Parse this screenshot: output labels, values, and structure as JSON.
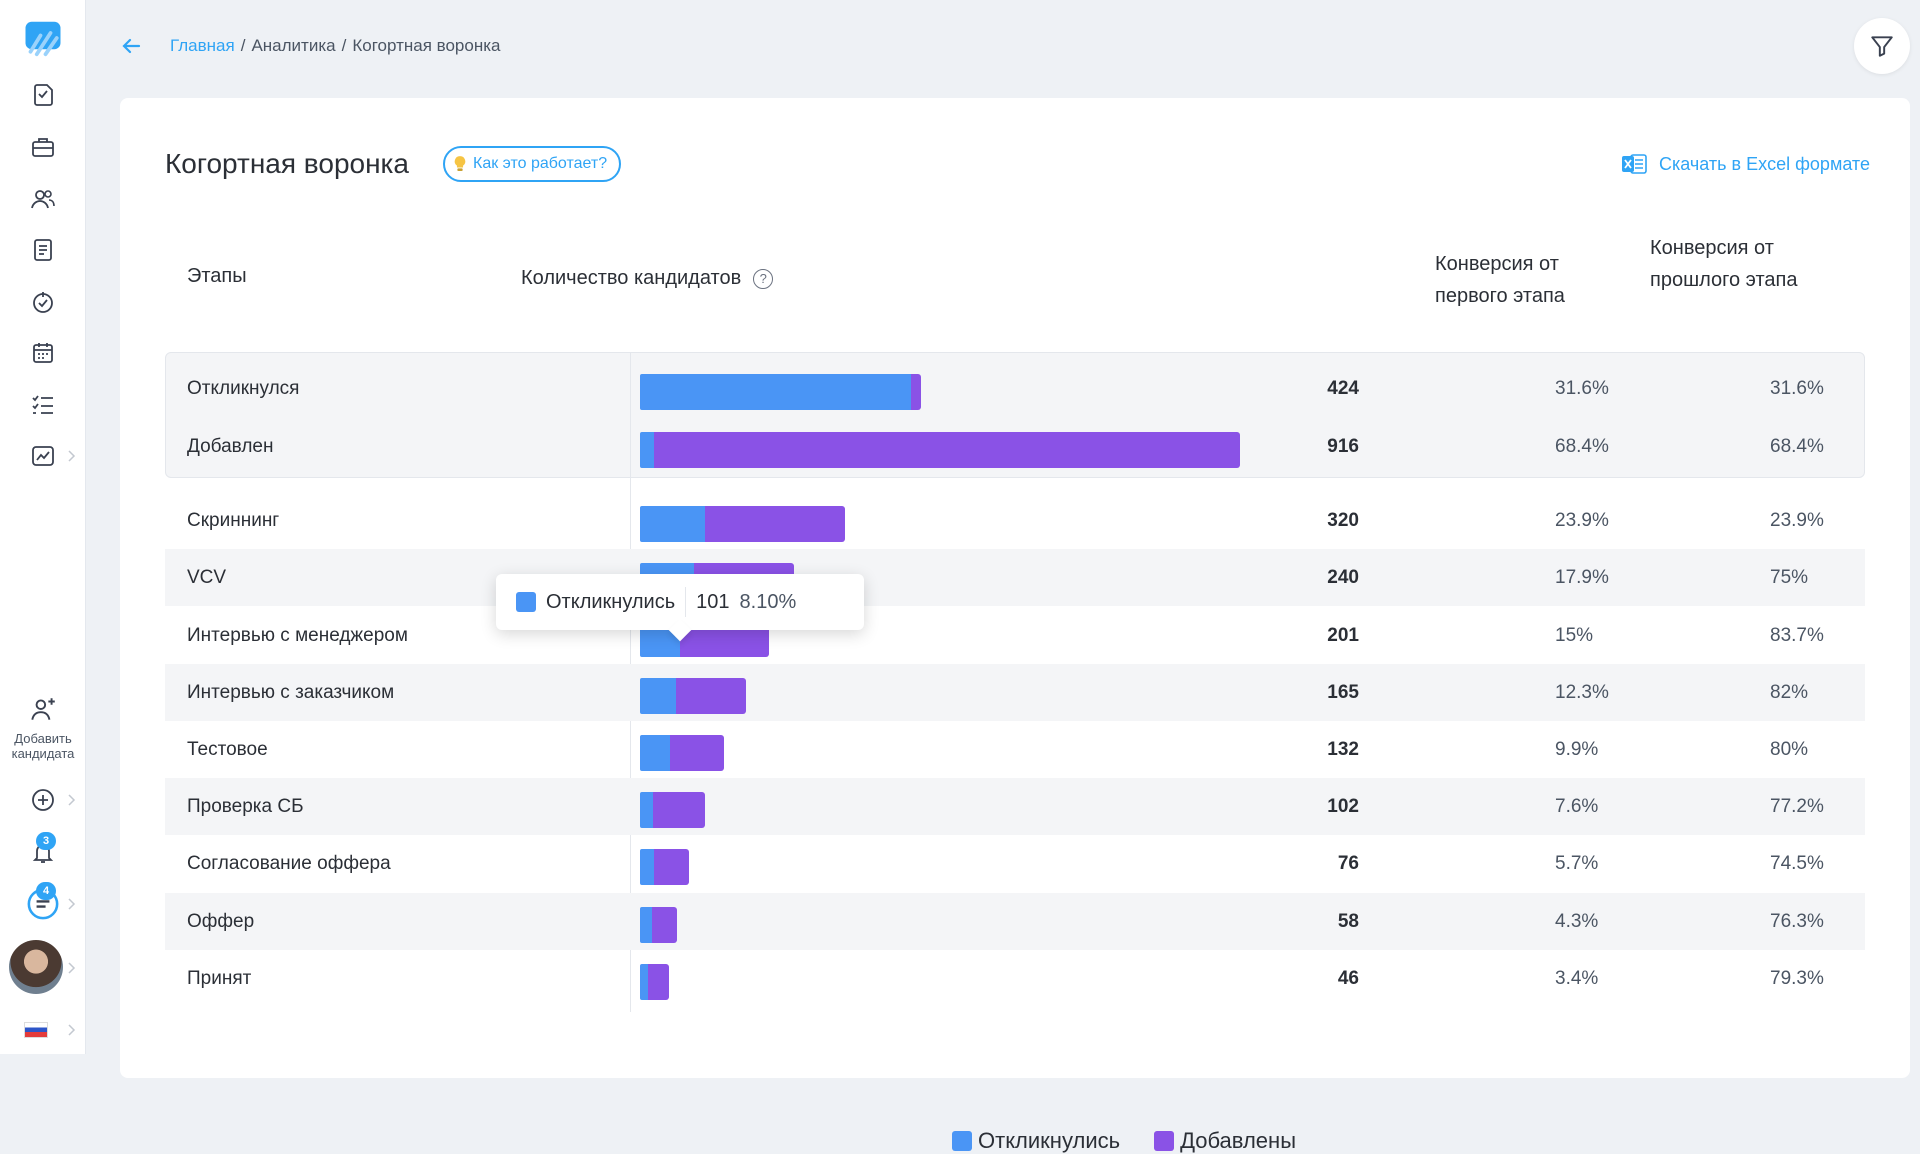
{
  "breadcrumb": {
    "home": "Главная",
    "sep": "/",
    "analytics": "Аналитика",
    "current": "Когортная воронка"
  },
  "page": {
    "title": "Когортная воронка",
    "help": "Как это работает?",
    "excel": "Скачать в Excel формате"
  },
  "sidebar": {
    "add_candidate": "Добавить кандидата",
    "notifications_badge": "3",
    "messages_badge": "4"
  },
  "columns": {
    "stages": "Этапы",
    "count": "Количество кандидатов",
    "conv_first": "Конверсия от первого этапа",
    "conv_prev": "Конверсия от прошлого этапа"
  },
  "colors": {
    "responded": "#4a95f5",
    "added": "#8a52e6",
    "accent": "#2fa4f5"
  },
  "tooltip": {
    "label": "Откликнулись",
    "value": "101",
    "percent": "8.10%"
  },
  "legend": {
    "responded": "Откликнулись",
    "added": "Добавлены"
  },
  "chart_data": {
    "type": "bar",
    "orientation": "horizontal",
    "stacked": true,
    "categories": [
      "Откликнулся",
      "Добавлен",
      "Скриннинг",
      "VCV",
      "Интервью с менеджером",
      "Интервью с заказчиком",
      "Тестовое",
      "Проверка СБ",
      "Согласование оффера",
      "Оффер",
      "Принят"
    ],
    "totals": [
      424,
      916,
      320,
      240,
      201,
      165,
      132,
      102,
      76,
      58,
      46
    ],
    "series": [
      {
        "name": "Откликнулись",
        "values": [
          424,
          0,
          101,
          84,
          62,
          56,
          47,
          20,
          22,
          18,
          13
        ]
      },
      {
        "name": "Добавлены",
        "values": [
          0,
          916,
          219,
          156,
          139,
          109,
          85,
          82,
          54,
          40,
          33
        ]
      }
    ],
    "conv_first": [
      "31.6%",
      "68.4%",
      "23.9%",
      "17.9%",
      "15%",
      "12.3%",
      "9.9%",
      "7.6%",
      "5.7%",
      "4.3%",
      "3.4%"
    ],
    "conv_prev": [
      "31.6%",
      "68.4%",
      "23.9%",
      "75%",
      "83.7%",
      "82%",
      "80%",
      "77.2%",
      "74.5%",
      "76.3%",
      "79.3%"
    ],
    "legend": "bottom-center"
  }
}
